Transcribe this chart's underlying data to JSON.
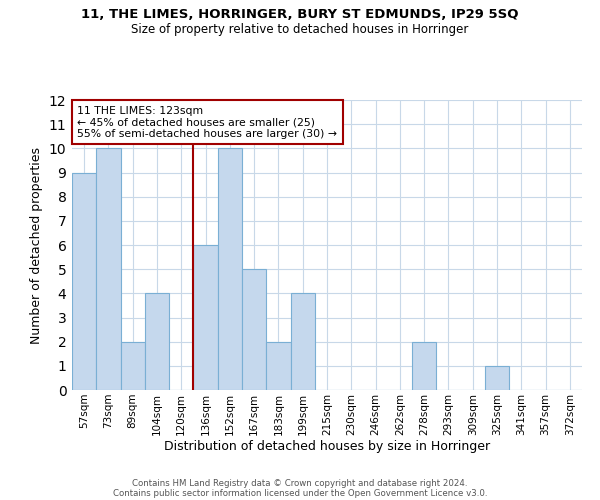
{
  "title1": "11, THE LIMES, HORRINGER, BURY ST EDMUNDS, IP29 5SQ",
  "title2": "Size of property relative to detached houses in Horringer",
  "xlabel": "Distribution of detached houses by size in Horringer",
  "ylabel": "Number of detached properties",
  "bar_labels": [
    "57sqm",
    "73sqm",
    "89sqm",
    "104sqm",
    "120sqm",
    "136sqm",
    "152sqm",
    "167sqm",
    "183sqm",
    "199sqm",
    "215sqm",
    "230sqm",
    "246sqm",
    "262sqm",
    "278sqm",
    "293sqm",
    "309sqm",
    "325sqm",
    "341sqm",
    "357sqm",
    "372sqm"
  ],
  "bar_values": [
    9,
    10,
    2,
    4,
    0,
    6,
    10,
    5,
    2,
    4,
    0,
    0,
    0,
    0,
    2,
    0,
    0,
    1,
    0,
    0,
    0
  ],
  "bar_color": "#c5d8ed",
  "bar_edge_color": "#7aafd4",
  "property_line_color": "#a00000",
  "ylim": [
    0,
    12
  ],
  "yticks": [
    0,
    1,
    2,
    3,
    4,
    5,
    6,
    7,
    8,
    9,
    10,
    11,
    12
  ],
  "annotation_line1": "11 THE LIMES: 123sqm",
  "annotation_line2": "← 45% of detached houses are smaller (25)",
  "annotation_line3": "55% of semi-detached houses are larger (30) →",
  "footnote1": "Contains HM Land Registry data © Crown copyright and database right 2024.",
  "footnote2": "Contains public sector information licensed under the Open Government Licence v3.0.",
  "background_color": "#ffffff",
  "grid_color": "#c8d8e8"
}
